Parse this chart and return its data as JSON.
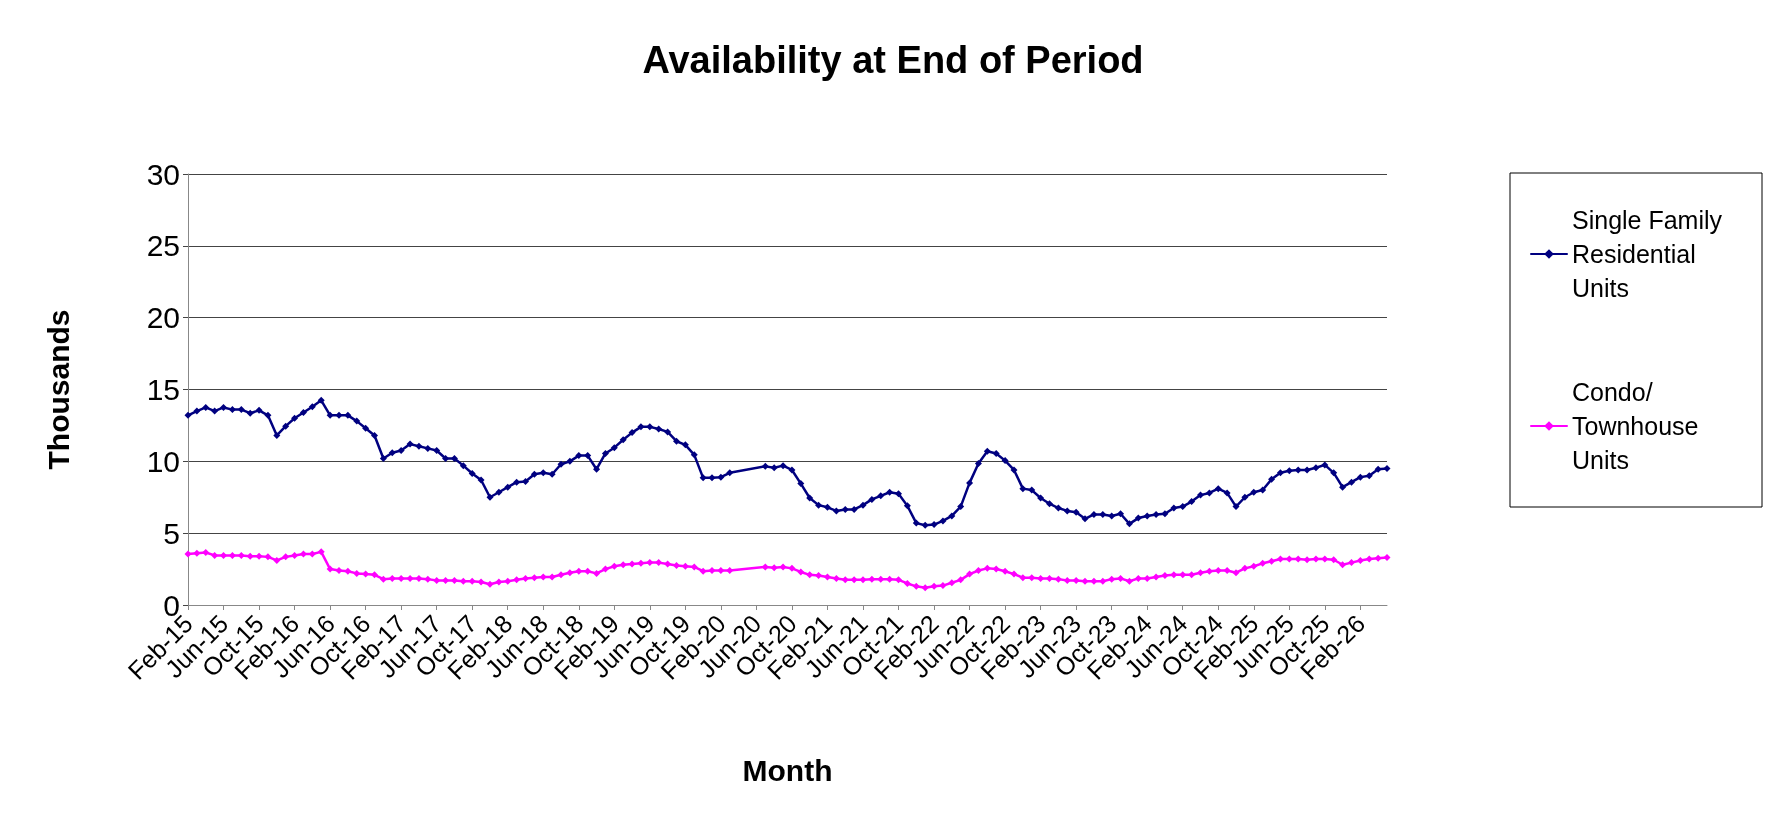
{
  "chart_data": {
    "type": "line",
    "title": "Availability at End of Period",
    "xlabel": "Month",
    "ylabel": "Thousands",
    "categories": [
      "Feb-15",
      null,
      null,
      null,
      "Jun-15",
      null,
      null,
      null,
      "Oct-15",
      null,
      null,
      null,
      "Feb-16",
      null,
      null,
      null,
      "Jun-16",
      null,
      null,
      null,
      "Oct-16",
      null,
      null,
      null,
      "Feb-17",
      null,
      null,
      null,
      "Jun-17",
      null,
      null,
      null,
      "Oct-17",
      null,
      null,
      null,
      "Feb-18",
      null,
      null,
      null,
      "Jun-18",
      null,
      null,
      null,
      "Oct-18",
      null,
      null,
      null,
      "Feb-19",
      null,
      null,
      null,
      "Jun-19",
      null,
      null,
      null,
      "Oct-19",
      null,
      null,
      null,
      "Feb-20",
      null,
      null,
      null,
      "Jun-20",
      null,
      null,
      null,
      "Oct-20",
      null,
      null,
      null,
      "Feb-21",
      null,
      null,
      null,
      "Jun-21",
      null,
      null,
      null,
      "Oct-21",
      null,
      null,
      null,
      "Feb-22",
      null,
      null,
      null,
      "Jun-22",
      null,
      null,
      null,
      "Oct-22",
      null,
      null,
      null,
      "Feb-23",
      null,
      null,
      null,
      "Jun-23",
      null,
      null,
      null,
      "Oct-23",
      null,
      null,
      null,
      "Feb-24",
      null,
      null,
      null,
      "Jun-24",
      null,
      null,
      null,
      "Oct-24",
      null,
      null,
      null,
      "Feb-25",
      null,
      null,
      null,
      "Jun-25",
      null,
      null,
      null,
      "Oct-25",
      null,
      null,
      null,
      "Feb-26",
      null,
      null,
      null
    ],
    "series": [
      {
        "name": "Single Family Residential Units",
        "color": "#000080",
        "values": [
          13.2,
          13.5,
          13.75,
          13.5,
          13.75,
          13.6,
          13.6,
          13.35,
          13.55,
          13.2,
          11.8,
          12.45,
          13.0,
          13.4,
          13.8,
          14.25,
          13.2,
          13.2,
          13.2,
          12.8,
          12.3,
          11.8,
          10.2,
          10.6,
          10.75,
          11.2,
          11.05,
          10.9,
          10.75,
          10.2,
          10.2,
          9.7,
          9.15,
          8.7,
          7.5,
          7.85,
          8.2,
          8.55,
          8.6,
          9.1,
          9.2,
          9.1,
          9.8,
          10.0,
          10.4,
          10.4,
          9.45,
          10.55,
          10.95,
          11.5,
          12.0,
          12.4,
          12.4,
          12.25,
          12.05,
          11.4,
          11.15,
          10.45,
          8.85,
          8.85,
          8.9,
          9.2,
          null,
          null,
          null,
          9.65,
          9.55,
          9.7,
          9.4,
          8.45,
          7.45,
          6.95,
          6.8,
          6.55,
          6.65,
          6.65,
          6.95,
          7.35,
          7.6,
          7.85,
          7.75,
          6.9,
          5.7,
          5.55,
          5.6,
          5.85,
          6.2,
          6.85,
          8.5,
          9.85,
          10.7,
          10.55,
          10.05,
          9.4,
          8.1,
          8.0,
          7.45,
          7.05,
          6.75,
          6.55,
          6.45,
          6.0,
          6.3,
          6.3,
          6.2,
          6.35,
          5.65,
          6.05,
          6.2,
          6.3,
          6.35,
          6.75,
          6.85,
          7.2,
          7.65,
          7.8,
          8.1,
          7.8,
          6.85,
          7.5,
          7.85,
          8.0,
          8.75,
          9.2,
          9.35,
          9.4,
          9.4,
          9.55,
          9.75,
          9.2,
          8.2,
          8.55,
          8.9,
          9.0,
          9.45,
          9.5
        ]
      },
      {
        "name": "Condo/ Townhouse Units",
        "color": "#ff00ff",
        "values": [
          3.55,
          3.6,
          3.65,
          3.45,
          3.45,
          3.45,
          3.45,
          3.4,
          3.4,
          3.35,
          3.1,
          3.35,
          3.45,
          3.55,
          3.55,
          3.7,
          2.5,
          2.4,
          2.35,
          2.2,
          2.15,
          2.1,
          1.8,
          1.85,
          1.85,
          1.85,
          1.85,
          1.8,
          1.7,
          1.7,
          1.7,
          1.65,
          1.65,
          1.6,
          1.45,
          1.6,
          1.65,
          1.75,
          1.85,
          1.9,
          1.95,
          1.95,
          2.1,
          2.25,
          2.35,
          2.35,
          2.2,
          2.5,
          2.7,
          2.8,
          2.85,
          2.9,
          2.95,
          2.95,
          2.85,
          2.75,
          2.7,
          2.65,
          2.35,
          2.4,
          2.4,
          2.4,
          null,
          null,
          null,
          2.65,
          2.6,
          2.65,
          2.55,
          2.3,
          2.1,
          2.05,
          1.95,
          1.85,
          1.75,
          1.75,
          1.75,
          1.8,
          1.8,
          1.8,
          1.75,
          1.5,
          1.3,
          1.2,
          1.3,
          1.35,
          1.55,
          1.75,
          2.15,
          2.4,
          2.55,
          2.5,
          2.35,
          2.15,
          1.9,
          1.9,
          1.85,
          1.85,
          1.8,
          1.7,
          1.7,
          1.65,
          1.65,
          1.65,
          1.8,
          1.85,
          1.65,
          1.85,
          1.85,
          1.95,
          2.05,
          2.1,
          2.1,
          2.1,
          2.25,
          2.35,
          2.4,
          2.4,
          2.25,
          2.55,
          2.7,
          2.9,
          3.05,
          3.2,
          3.2,
          3.2,
          3.15,
          3.2,
          3.2,
          3.15,
          2.8,
          2.95,
          3.1,
          3.2,
          3.25,
          3.3
        ]
      }
    ],
    "ylim": [
      0,
      30
    ],
    "yticks": [
      0,
      5,
      10,
      15,
      20,
      25,
      30
    ],
    "grid": "y",
    "legend": "right",
    "marker": "diamond",
    "line_style": "solid"
  }
}
